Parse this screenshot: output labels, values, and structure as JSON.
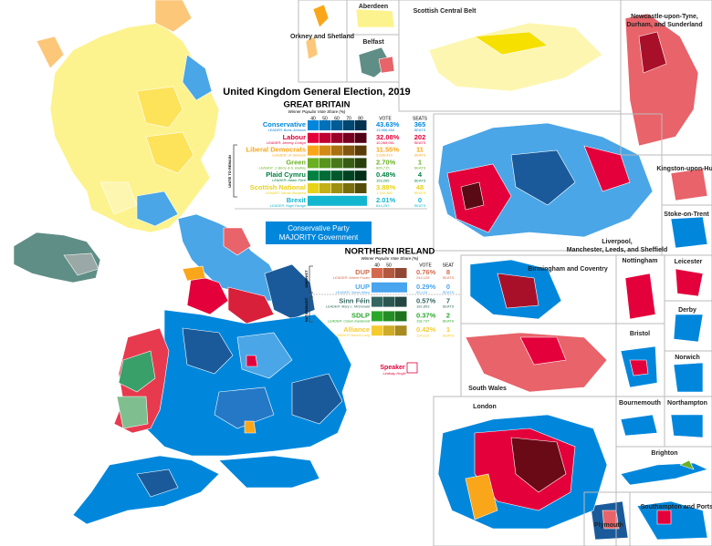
{
  "title": "United Kingdom General Election, 2019",
  "great_britain": {
    "heading": "GREAT BRITAIN",
    "subtitle": "Winner Popular Vote Share (%)",
    "scale": [
      "40",
      "50",
      "60",
      "70",
      "80"
    ],
    "vote_header": "VOTE",
    "seats_header": "SEATS",
    "group_label": "UNITE TO REMAIN",
    "parties": [
      {
        "name": "Conservative",
        "leader": "LEADER: Boris Johnson",
        "vote_share": "43.63%",
        "votes": "13,966,454",
        "seats": "365",
        "seats_unit": "SEATS",
        "color": "#0087dc"
      },
      {
        "name": "Labour",
        "leader": "LEADER: Jeremy Corbyn",
        "vote_share": "32.08%",
        "votes": "10,269,051",
        "seats": "202",
        "seats_unit": "SEATS",
        "color": "#e4003b"
      },
      {
        "name": "Liberal Democrats",
        "leader": "LEADER: Jo Swinson",
        "vote_share": "11.55%",
        "votes": "3,696,419",
        "seats": "11",
        "seats_unit": "SEATS",
        "color": "#faa61a"
      },
      {
        "name": "Green",
        "leader": "LEADER: J. Berry & S. Bartley",
        "vote_share": "2.70%",
        "votes": "865,715",
        "seats": "1",
        "seats_unit": "SEATS",
        "color": "#6ab023"
      },
      {
        "name": "Plaid Cymru",
        "leader": "LEADER: Adam Price",
        "vote_share": "0.48%",
        "votes": "153,265",
        "seats": "4",
        "seats_unit": "SEATS",
        "color": "#008142"
      },
      {
        "name": "Scottish National",
        "leader": "LEADER: Nicola Sturgeon",
        "vote_share": "3.88%",
        "votes": "1,242,380",
        "seats": "48",
        "seats_unit": "SEATS",
        "color": "#e8d21a"
      },
      {
        "name": "Brexit",
        "leader": "LEADER: Nigel Farage",
        "vote_share": "2.01%",
        "votes": "644,257",
        "seats": "0",
        "seats_unit": "SEATS",
        "color": "#12b6cf"
      }
    ]
  },
  "result_box": [
    "Conservative Party",
    "MAJORITY Government"
  ],
  "northern_ireland": {
    "heading": "NORTHERN IRELAND",
    "subtitle": "Winner Popular Vote Share (%)",
    "scale": [
      "40",
      "50"
    ],
    "vote_header": "VOTE",
    "seats_header": "SEAT",
    "groups": [
      "UNIONIST",
      "NATIONALIST"
    ],
    "parties": [
      {
        "name": "DUP",
        "leader": "LEADER: Arlene Foster",
        "vote_share": "0.76%",
        "votes": "244,128",
        "seats": "8",
        "seats_unit": "SEATS",
        "color": "#d46a4c"
      },
      {
        "name": "UUP",
        "leader": "LEADER: Steve Aiken",
        "vote_share": "0.29%",
        "votes": "93,123",
        "seats": "0",
        "seats_unit": "SEATS",
        "color": "#48a5ee"
      },
      {
        "name": "Sinn Féin",
        "leader": "LEADER: Mary L. McDonald",
        "vote_share": "0.57%",
        "votes": "181,853",
        "seats": "7",
        "seats_unit": "SEATS",
        "color": "#326760"
      },
      {
        "name": "SDLP",
        "leader": "LEADER: Colum Eastwood",
        "vote_share": "0.37%",
        "votes": "118,737",
        "seats": "2",
        "seats_unit": "SEATS",
        "color": "#2aa82c"
      },
      {
        "name": "Alliance",
        "leader": "LEADER: Naomi Long",
        "vote_share": "0.42%",
        "votes": "134,115",
        "seats": "1",
        "seats_unit": "SEATS",
        "color": "#f6cb2f"
      }
    ]
  },
  "speaker": {
    "name": "Speaker",
    "leader": "Lindsay Hoyle"
  },
  "insets": [
    "Orkney and Shetland",
    "Aberdeen",
    "Scottish Central Belt",
    "Belfast",
    "Newcastle-upon-Tyne, Durham, and Sunderland",
    "Kingston-upon-Hull",
    "Stoke-on-Trent",
    "Liverpool, Manchester, Leeds, and Sheffield",
    "Birmingham and Coventry",
    "Nottingham",
    "Leicester",
    "Derby",
    "Norwich",
    "Bristol",
    "South Wales",
    "London",
    "Bournemouth",
    "Northampton",
    "Brighton",
    "Southampton and Portsmouth",
    "Plymouth"
  ]
}
